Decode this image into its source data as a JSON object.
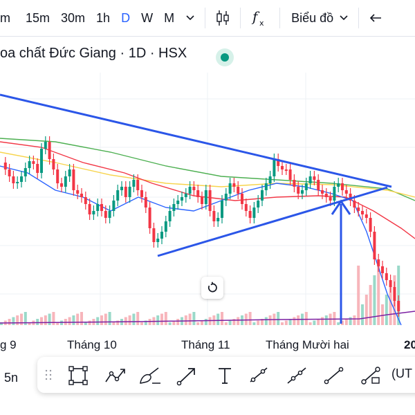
{
  "toolbar": {
    "intervals": [
      "m",
      "15m",
      "30m",
      "1h",
      "D",
      "W",
      "M"
    ],
    "active_interval": "D",
    "chart_type_label": "Biểu đồ"
  },
  "legend": {
    "title": "oa chất Đức Giang · 1D · HSX"
  },
  "time_axis": {
    "labels": [
      "g 9",
      "Tháng 10",
      "Tháng 11",
      "Tháng Mười hai",
      "20"
    ]
  },
  "bottom": {
    "left_label": "5n",
    "right_label": "(UT"
  },
  "colors": {
    "up": "#089981",
    "down": "#f23645",
    "accent": "#2962ff",
    "trendline": "#2b56e8",
    "ma_fast": "#2962ff",
    "ma_mid": "#f23645",
    "ma_slow": "#4caf50",
    "ma_yellow": "#f7d44c"
  }
}
